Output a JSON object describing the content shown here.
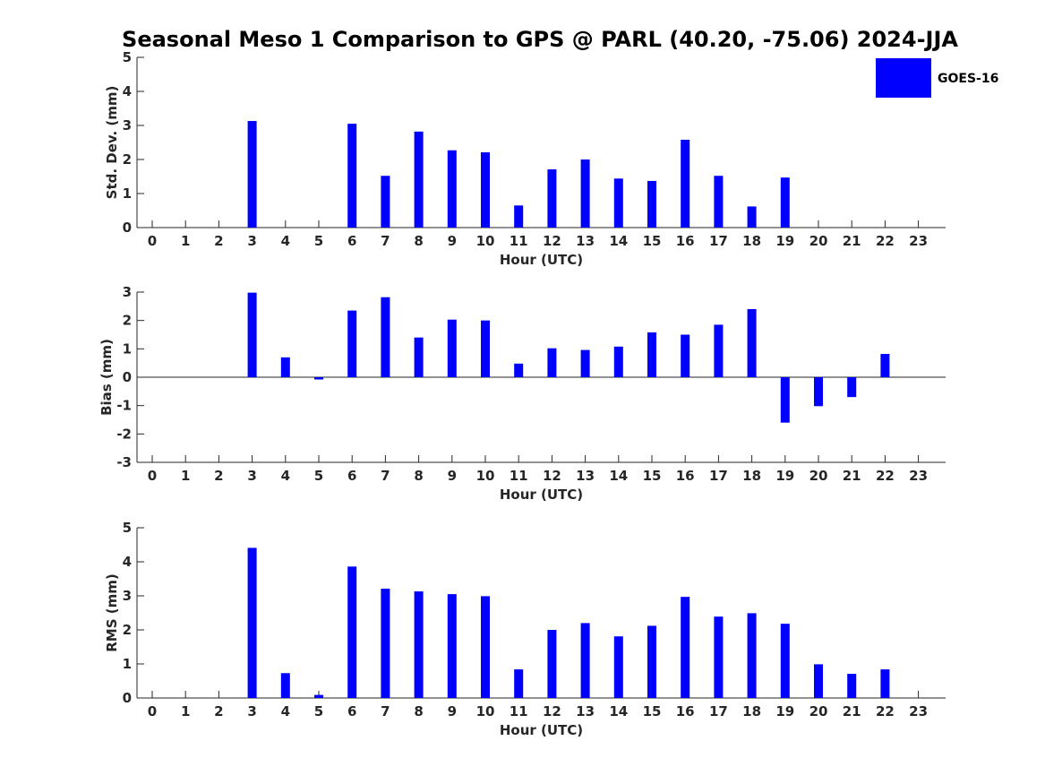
{
  "title": "Seasonal Meso 1 Comparison to GPS @ PARL (40.20, -75.06) 2024-JJA",
  "colors": {
    "bar": "#0000ff",
    "axis": "#262626",
    "background": "#ffffff"
  },
  "legend": {
    "label": "GOES-16",
    "placement": "top-right"
  },
  "chart_data": [
    {
      "type": "bar",
      "name": "std-dev",
      "xlabel": "Hour (UTC)",
      "ylabel": "Std. Dev. (mm)",
      "ylim": [
        0,
        5
      ],
      "yticks": [
        0,
        1,
        2,
        3,
        4,
        5
      ],
      "categories": [
        "0",
        "1",
        "2",
        "3",
        "4",
        "5",
        "6",
        "7",
        "8",
        "9",
        "10",
        "11",
        "12",
        "13",
        "14",
        "15",
        "16",
        "17",
        "18",
        "19",
        "20",
        "21",
        "22",
        "23"
      ],
      "series": [
        {
          "name": "GOES-16",
          "values": [
            null,
            null,
            null,
            3.13,
            null,
            null,
            3.05,
            1.52,
            2.82,
            2.27,
            2.21,
            0.65,
            1.71,
            2.0,
            1.44,
            1.37,
            2.58,
            1.52,
            0.62,
            1.47,
            null,
            null,
            null,
            null
          ]
        }
      ]
    },
    {
      "type": "bar",
      "name": "bias",
      "xlabel": "Hour (UTC)",
      "ylabel": "Bias (mm)",
      "ylim": [
        -3,
        3
      ],
      "yticks": [
        -3,
        -2,
        -1,
        0,
        1,
        2,
        3
      ],
      "zero_line": true,
      "categories": [
        "0",
        "1",
        "2",
        "3",
        "4",
        "5",
        "6",
        "7",
        "8",
        "9",
        "10",
        "11",
        "12",
        "13",
        "14",
        "15",
        "16",
        "17",
        "18",
        "19",
        "20",
        "21",
        "22",
        "23"
      ],
      "series": [
        {
          "name": "GOES-16",
          "values": [
            null,
            null,
            null,
            2.98,
            0.7,
            -0.08,
            2.35,
            2.82,
            1.4,
            2.03,
            2.0,
            0.48,
            1.02,
            0.96,
            1.08,
            1.58,
            1.5,
            1.85,
            2.4,
            -1.6,
            -1.02,
            -0.7,
            0.82,
            null
          ]
        }
      ]
    },
    {
      "type": "bar",
      "name": "rms",
      "xlabel": "Hour (UTC)",
      "ylabel": "RMS (mm)",
      "ylim": [
        0,
        5
      ],
      "yticks": [
        0,
        1,
        2,
        3,
        4,
        5
      ],
      "categories": [
        "0",
        "1",
        "2",
        "3",
        "4",
        "5",
        "6",
        "7",
        "8",
        "9",
        "10",
        "11",
        "12",
        "13",
        "14",
        "15",
        "16",
        "17",
        "18",
        "19",
        "20",
        "21",
        "22",
        "23"
      ],
      "series": [
        {
          "name": "GOES-16",
          "values": [
            null,
            null,
            null,
            4.41,
            0.73,
            0.09,
            3.86,
            3.21,
            3.13,
            3.05,
            2.99,
            0.84,
            2.0,
            2.2,
            1.81,
            2.12,
            2.97,
            2.39,
            2.49,
            2.18,
            0.99,
            0.71,
            0.84,
            null
          ]
        }
      ]
    }
  ]
}
